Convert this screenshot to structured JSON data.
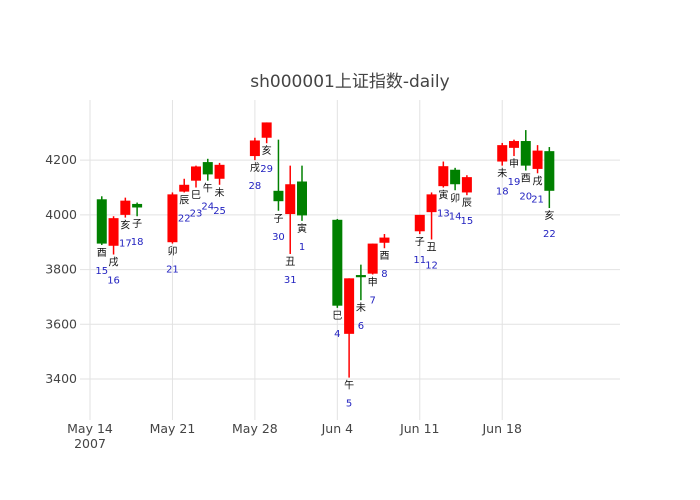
{
  "chart_data": {
    "type": "candlestick",
    "title": "sh000001上证指数-daily",
    "up_color": "#008000",
    "down_color": "#ff0000",
    "label_color": "#1f1fbf",
    "ylim": [
      3250,
      4420
    ],
    "yticks": [
      3400,
      3600,
      3800,
      4000,
      4200
    ],
    "xlim": [
      "2007-05-14",
      "2007-06-28"
    ],
    "xticks": [
      {
        "date": "2007-05-14",
        "label": "May 14",
        "sub": "2007"
      },
      {
        "date": "2007-05-21",
        "label": "May 21",
        "sub": ""
      },
      {
        "date": "2007-05-28",
        "label": "May 28",
        "sub": ""
      },
      {
        "date": "2007-06-04",
        "label": "Jun 4",
        "sub": ""
      },
      {
        "date": "2007-06-11",
        "label": "Jun 11",
        "sub": ""
      },
      {
        "date": "2007-06-18",
        "label": "Jun 18",
        "sub": ""
      }
    ],
    "candles": [
      {
        "date": "2007-05-15",
        "open": 3895,
        "high": 4068,
        "low": 3890,
        "close": 4057,
        "branch": "酉",
        "day": "15"
      },
      {
        "date": "2007-05-16",
        "open": 3988,
        "high": 3995,
        "low": 3855,
        "close": 3887,
        "branch": "戌",
        "day": "16"
      },
      {
        "date": "2007-05-17",
        "open": 4052,
        "high": 4063,
        "low": 3990,
        "close": 4000,
        "branch": "亥",
        "day": "17"
      },
      {
        "date": "2007-05-18",
        "open": 4027,
        "high": 4045,
        "low": 3995,
        "close": 4040,
        "branch": "子",
        "day": "18"
      },
      {
        "date": "2007-05-21",
        "open": 4075,
        "high": 4082,
        "low": 3895,
        "close": 3900,
        "branch": "卯",
        "day": "21"
      },
      {
        "date": "2007-05-22",
        "open": 4110,
        "high": 4132,
        "low": 4082,
        "close": 4085,
        "branch": "辰",
        "day": "22"
      },
      {
        "date": "2007-05-23",
        "open": 4177,
        "high": 4180,
        "low": 4100,
        "close": 4125,
        "branch": "巳",
        "day": "23"
      },
      {
        "date": "2007-05-24",
        "open": 4148,
        "high": 4205,
        "low": 4125,
        "close": 4193,
        "branch": "午",
        "day": "24"
      },
      {
        "date": "2007-05-25",
        "open": 4183,
        "high": 4190,
        "low": 4110,
        "close": 4132,
        "branch": "未",
        "day": "25"
      },
      {
        "date": "2007-05-28",
        "open": 4272,
        "high": 4282,
        "low": 4200,
        "close": 4215,
        "branch": "戌",
        "day": "28"
      },
      {
        "date": "2007-05-29",
        "open": 4338,
        "high": 4338,
        "low": 4262,
        "close": 4282,
        "branch": "亥",
        "day": "29"
      },
      {
        "date": "2007-05-30",
        "open": 4050,
        "high": 4275,
        "low": 4015,
        "close": 4088,
        "branch": "子",
        "day": "30"
      },
      {
        "date": "2007-05-31",
        "open": 4112,
        "high": 4180,
        "low": 3857,
        "close": 4003,
        "branch": "丑",
        "day": "31"
      },
      {
        "date": "2007-06-01",
        "open": 3998,
        "high": 4180,
        "low": 3978,
        "close": 4122,
        "branch": "寅",
        "day": "1"
      },
      {
        "date": "2007-06-04",
        "open": 3668,
        "high": 3985,
        "low": 3660,
        "close": 3982,
        "branch": "巳",
        "day": "4"
      },
      {
        "date": "2007-06-05",
        "open": 3768,
        "high": 3768,
        "low": 3405,
        "close": 3565,
        "branch": "午",
        "day": "5"
      },
      {
        "date": "2007-06-06",
        "open": 3772,
        "high": 3818,
        "low": 3688,
        "close": 3780,
        "branch": "未",
        "day": "6"
      },
      {
        "date": "2007-06-07",
        "open": 3895,
        "high": 3895,
        "low": 3782,
        "close": 3785,
        "branch": "申",
        "day": "7"
      },
      {
        "date": "2007-06-08",
        "open": 3917,
        "high": 3930,
        "low": 3878,
        "close": 3898,
        "branch": "酉",
        "day": "8"
      },
      {
        "date": "2007-06-11",
        "open": 4000,
        "high": 4000,
        "low": 3930,
        "close": 3940,
        "branch": "子",
        "day": "11"
      },
      {
        "date": "2007-06-12",
        "open": 4075,
        "high": 4082,
        "low": 3910,
        "close": 4010,
        "branch": "丑",
        "day": "12"
      },
      {
        "date": "2007-06-13",
        "open": 4178,
        "high": 4195,
        "low": 4100,
        "close": 4105,
        "branch": "寅",
        "day": "13"
      },
      {
        "date": "2007-06-14",
        "open": 4112,
        "high": 4172,
        "low": 4090,
        "close": 4165,
        "branch": "卯",
        "day": "14"
      },
      {
        "date": "2007-06-15",
        "open": 4138,
        "high": 4145,
        "low": 4072,
        "close": 4082,
        "branch": "辰",
        "day": "15"
      },
      {
        "date": "2007-06-18",
        "open": 4255,
        "high": 4263,
        "low": 4180,
        "close": 4195,
        "branch": "未",
        "day": "18"
      },
      {
        "date": "2007-06-19",
        "open": 4270,
        "high": 4275,
        "low": 4215,
        "close": 4245,
        "branch": "申",
        "day": "19"
      },
      {
        "date": "2007-06-20",
        "open": 4180,
        "high": 4310,
        "low": 4162,
        "close": 4270,
        "branch": "酉",
        "day": "20"
      },
      {
        "date": "2007-06-21",
        "open": 4235,
        "high": 4255,
        "low": 4152,
        "close": 4168,
        "branch": "戌",
        "day": "21"
      },
      {
        "date": "2007-06-22",
        "open": 4088,
        "high": 4248,
        "low": 4025,
        "close": 4233,
        "branch": "亥",
        "day": "22"
      }
    ]
  }
}
